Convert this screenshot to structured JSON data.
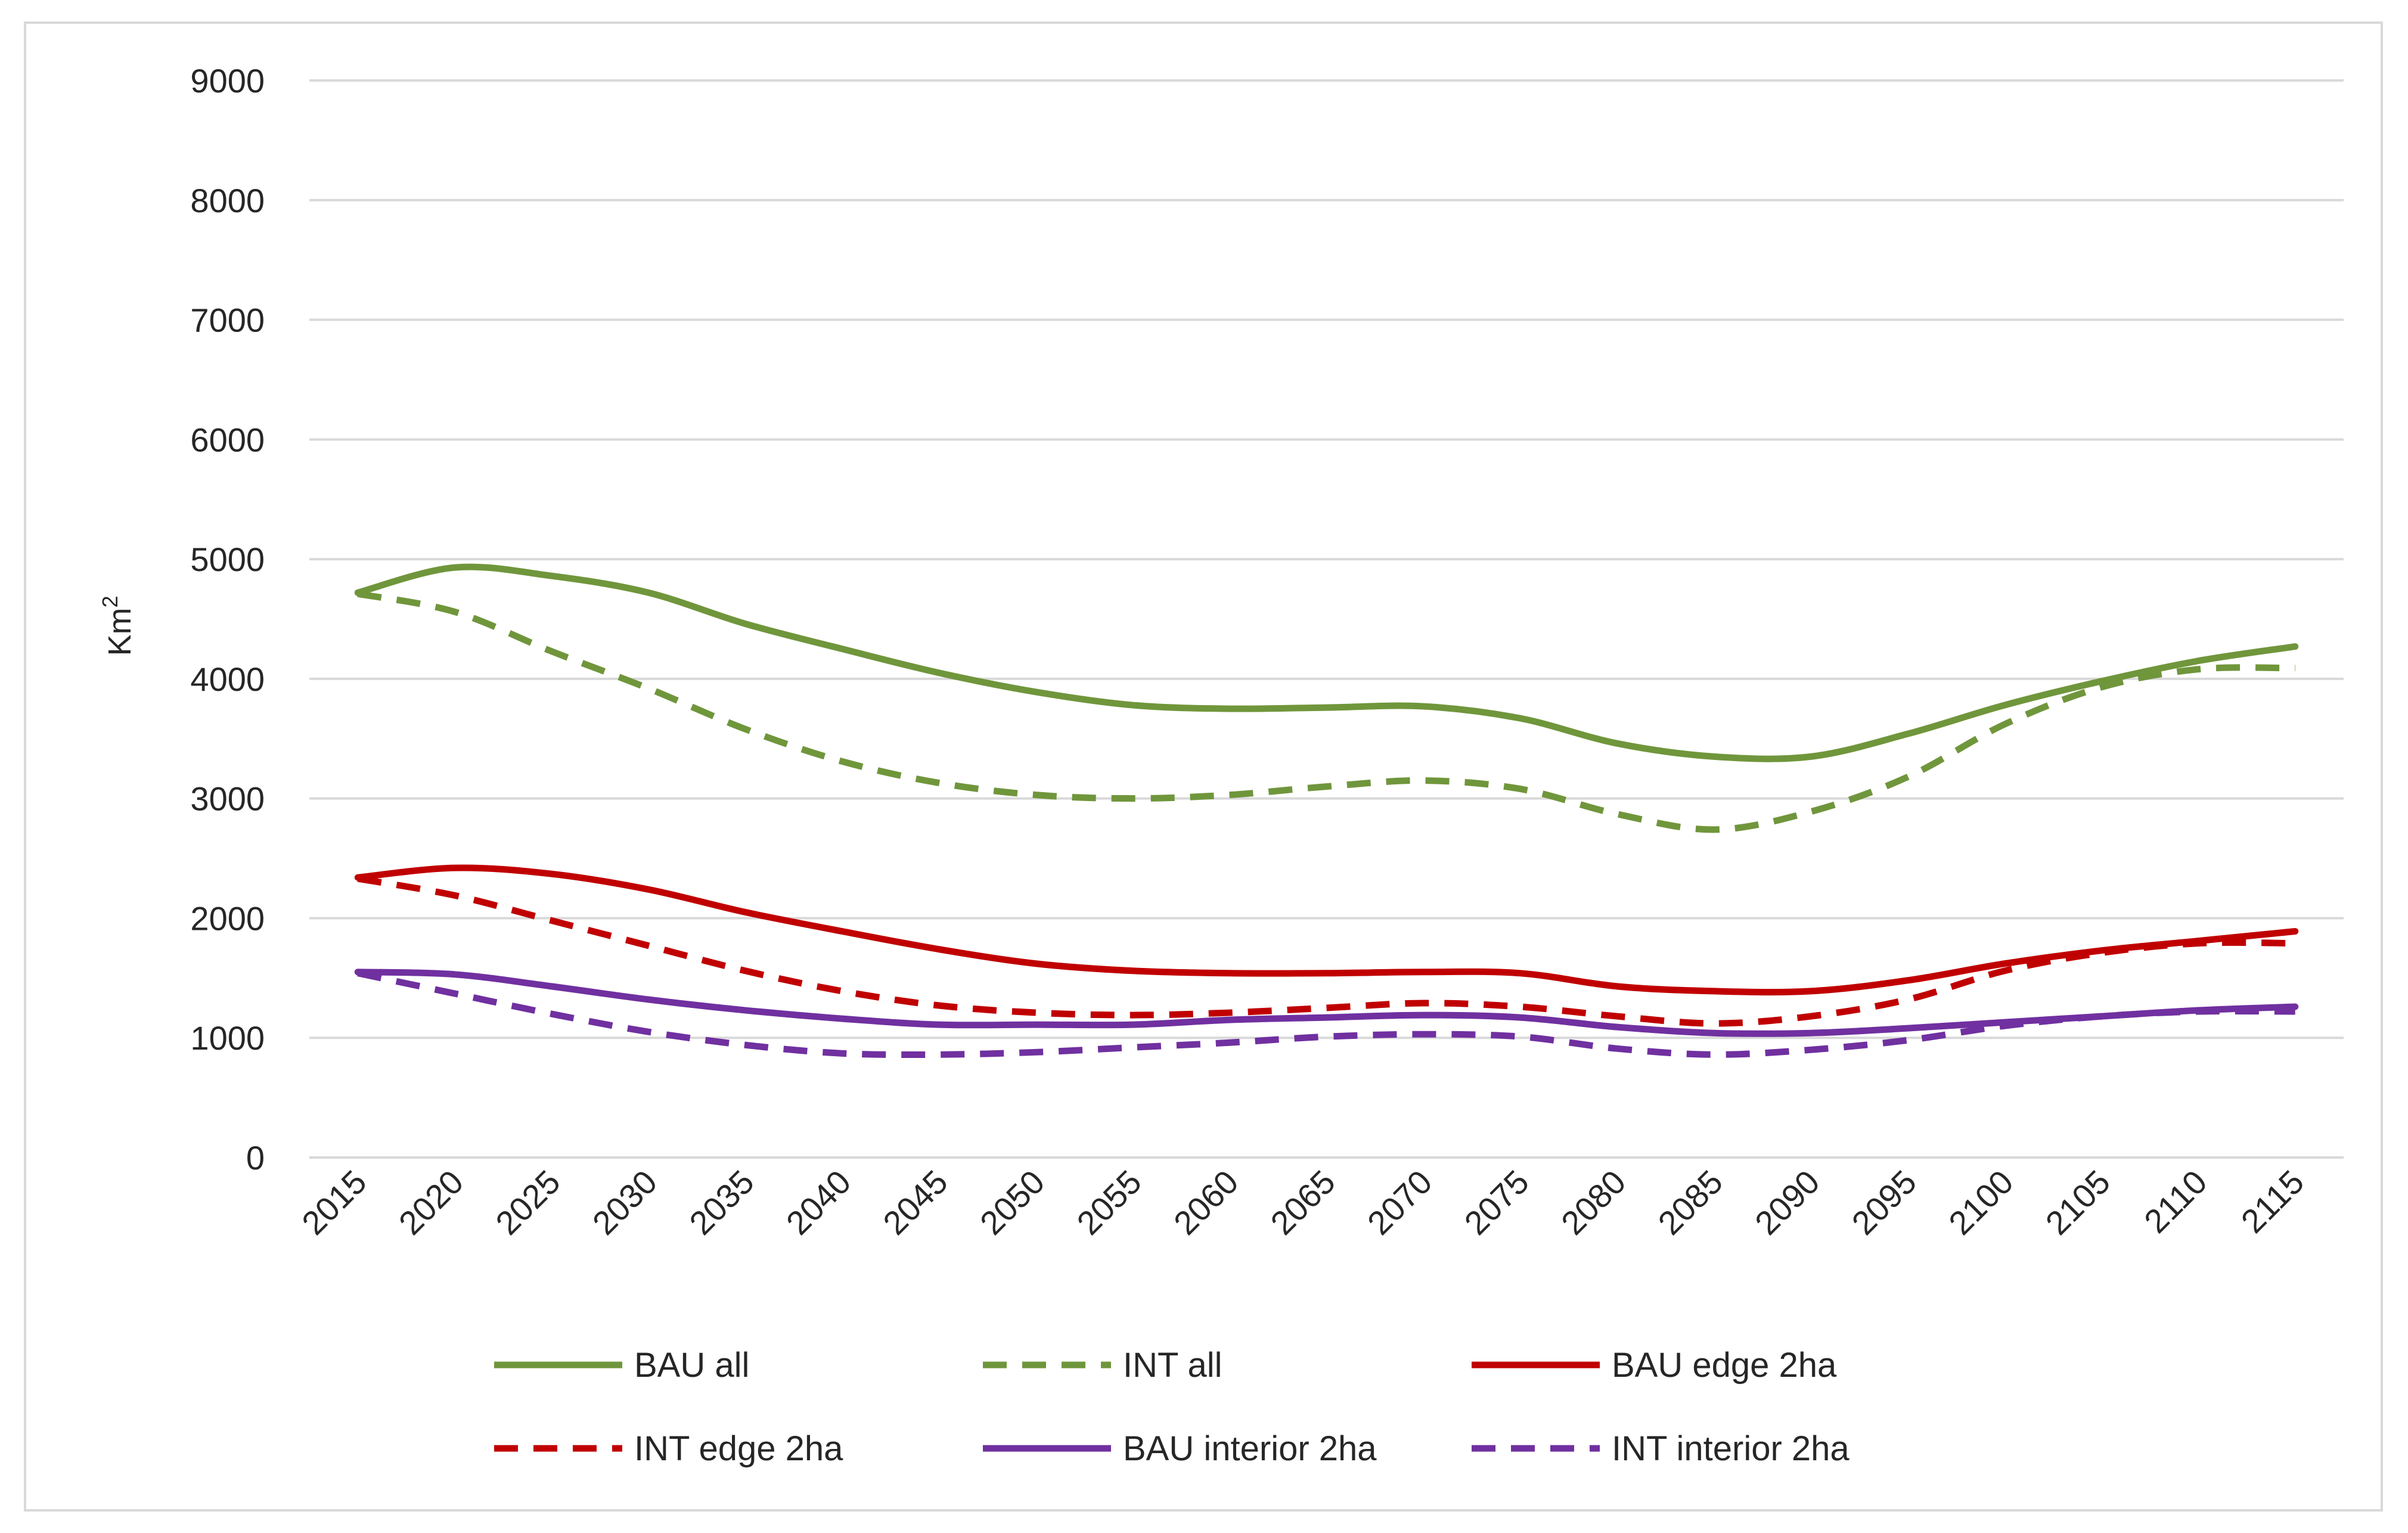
{
  "chart_data": {
    "type": "line",
    "title": "",
    "xlabel": "",
    "ylabel": "Km",
    "ylabel_superscript": "2",
    "ylim": [
      0,
      9000
    ],
    "yticks": [
      0,
      1000,
      2000,
      3000,
      4000,
      5000,
      6000,
      7000,
      8000,
      9000
    ],
    "grid": true,
    "legend_position": "bottom",
    "x": [
      "2015",
      "2020",
      "2025",
      "2030",
      "2035",
      "2040",
      "2045",
      "2050",
      "2055",
      "2060",
      "2065",
      "2070",
      "2075",
      "2080",
      "2085",
      "2090",
      "2095",
      "2100",
      "2105",
      "2110",
      "2115"
    ],
    "series": [
      {
        "name": "BAU all",
        "color": "#70963c",
        "style": "solid",
        "values": [
          4720,
          4930,
          4860,
          4720,
          4460,
          4250,
          4050,
          3890,
          3780,
          3750,
          3760,
          3770,
          3670,
          3460,
          3350,
          3350,
          3540,
          3780,
          3980,
          4150,
          4270
        ]
      },
      {
        "name": "INT all",
        "color": "#70963c",
        "style": "dashed",
        "values": [
          4710,
          4560,
          4230,
          3920,
          3580,
          3310,
          3130,
          3030,
          3000,
          3030,
          3100,
          3150,
          3080,
          2870,
          2740,
          2890,
          3180,
          3620,
          3930,
          4080,
          4090
        ]
      },
      {
        "name": "BAU edge 2ha",
        "color": "#c00000",
        "style": "solid",
        "values": [
          2340,
          2420,
          2370,
          2240,
          2050,
          1890,
          1740,
          1620,
          1560,
          1540,
          1540,
          1550,
          1540,
          1430,
          1390,
          1390,
          1480,
          1620,
          1730,
          1810,
          1890
        ]
      },
      {
        "name": "INT edge 2ha",
        "color": "#c00000",
        "style": "dashed",
        "values": [
          2330,
          2190,
          1980,
          1770,
          1560,
          1390,
          1270,
          1210,
          1190,
          1210,
          1250,
          1290,
          1260,
          1180,
          1120,
          1180,
          1320,
          1560,
          1710,
          1790,
          1790
        ]
      },
      {
        "name": "BAU interior 2ha",
        "color": "#7030a0",
        "style": "solid",
        "values": [
          1550,
          1530,
          1430,
          1320,
          1230,
          1160,
          1110,
          1110,
          1110,
          1150,
          1170,
          1190,
          1170,
          1090,
          1040,
          1040,
          1080,
          1130,
          1180,
          1230,
          1260
        ]
      },
      {
        "name": "INT interior 2ha",
        "color": "#7030a0",
        "style": "dashed",
        "values": [
          1540,
          1370,
          1200,
          1050,
          940,
          870,
          860,
          880,
          920,
          960,
          1010,
          1030,
          1010,
          910,
          860,
          900,
          980,
          1100,
          1180,
          1220,
          1220
        ]
      }
    ]
  }
}
